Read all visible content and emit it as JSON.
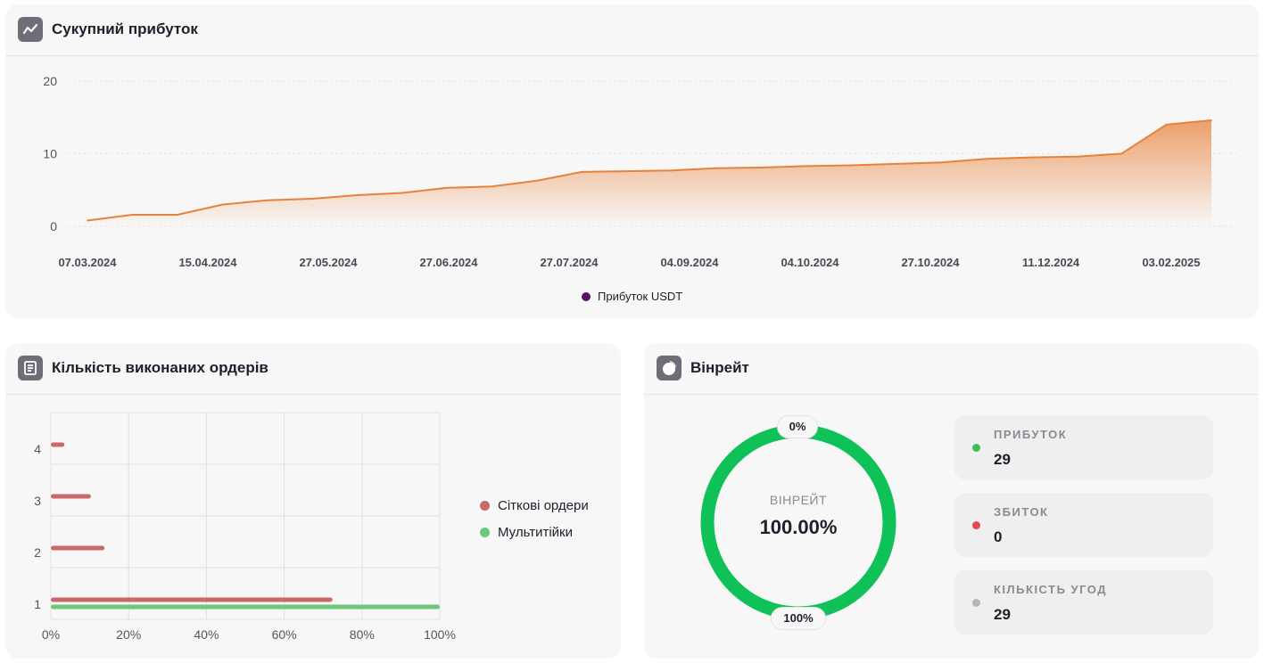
{
  "profit_card": {
    "title": "Сукупний прибуток",
    "icon": "trend-line-icon",
    "accent_color": "#e8823a",
    "legend_dot_color": "#5a0f6b"
  },
  "orders_card": {
    "title": "Кількість виконаних ордерів",
    "icon": "bar-list-icon"
  },
  "winrate_card": {
    "title": "Вінрейт",
    "icon": "pie-chart-icon",
    "center_label": "ВІНРЕЙТ",
    "center_value": "100.00%",
    "top_label": "0%",
    "bottom_label": "100%",
    "ring_color": "#0fc258",
    "stats": [
      {
        "label": "ПРИБУТОК",
        "value": "29",
        "color": "#3fbf57"
      },
      {
        "label": "ЗБИТОК",
        "value": "0",
        "color": "#e5484d"
      },
      {
        "label": "КІЛЬКІСТЬ УГОД",
        "value": "29",
        "color": "#b5b5b5"
      }
    ]
  },
  "chart_data": [
    {
      "type": "area",
      "title": "Сукупний прибуток",
      "x_ticks": [
        "07.03.2024",
        "15.04.2024",
        "27.05.2024",
        "27.06.2024",
        "27.07.2024",
        "04.09.2024",
        "04.10.2024",
        "27.10.2024",
        "11.12.2024",
        "03.02.2025"
      ],
      "y_ticks": [
        "0",
        "10",
        "20"
      ],
      "ylim": [
        0,
        20
      ],
      "series": [
        {
          "name": "Прибуток USDT",
          "color": "#e8823a",
          "values": [
            0.8,
            1.6,
            1.6,
            3.0,
            3.6,
            3.8,
            4.3,
            4.6,
            5.3,
            5.5,
            6.3,
            7.5,
            7.6,
            7.7,
            8.0,
            8.1,
            8.3,
            8.4,
            8.6,
            8.8,
            9.3,
            9.5,
            9.6,
            10.0,
            14.0,
            14.6
          ]
        }
      ],
      "grid": true,
      "legend": "bottom-center"
    },
    {
      "type": "bar",
      "orientation": "horizontal",
      "title": "Кількість виконаних ордерів",
      "categories": [
        "4",
        "3",
        "2",
        "1"
      ],
      "x_ticks": [
        "0%",
        "20%",
        "40%",
        "60%",
        "80%",
        "100%"
      ],
      "xlim": [
        0,
        100
      ],
      "series": [
        {
          "name": "Сіткові ордери",
          "color": "#c96a6a",
          "values": [
            3.5,
            10.3,
            13.8,
            72.4
          ]
        },
        {
          "name": "Мультитійки",
          "color": "#6ec77b",
          "values": [
            0,
            0,
            0,
            100
          ]
        }
      ],
      "grid": true,
      "legend": "right"
    },
    {
      "type": "pie",
      "title": "Вінрейт",
      "slices": [
        {
          "label": "Прибуток",
          "value": 29,
          "color": "#0fc258"
        },
        {
          "label": "Збиток",
          "value": 0,
          "color": "#e5484d"
        }
      ]
    }
  ]
}
